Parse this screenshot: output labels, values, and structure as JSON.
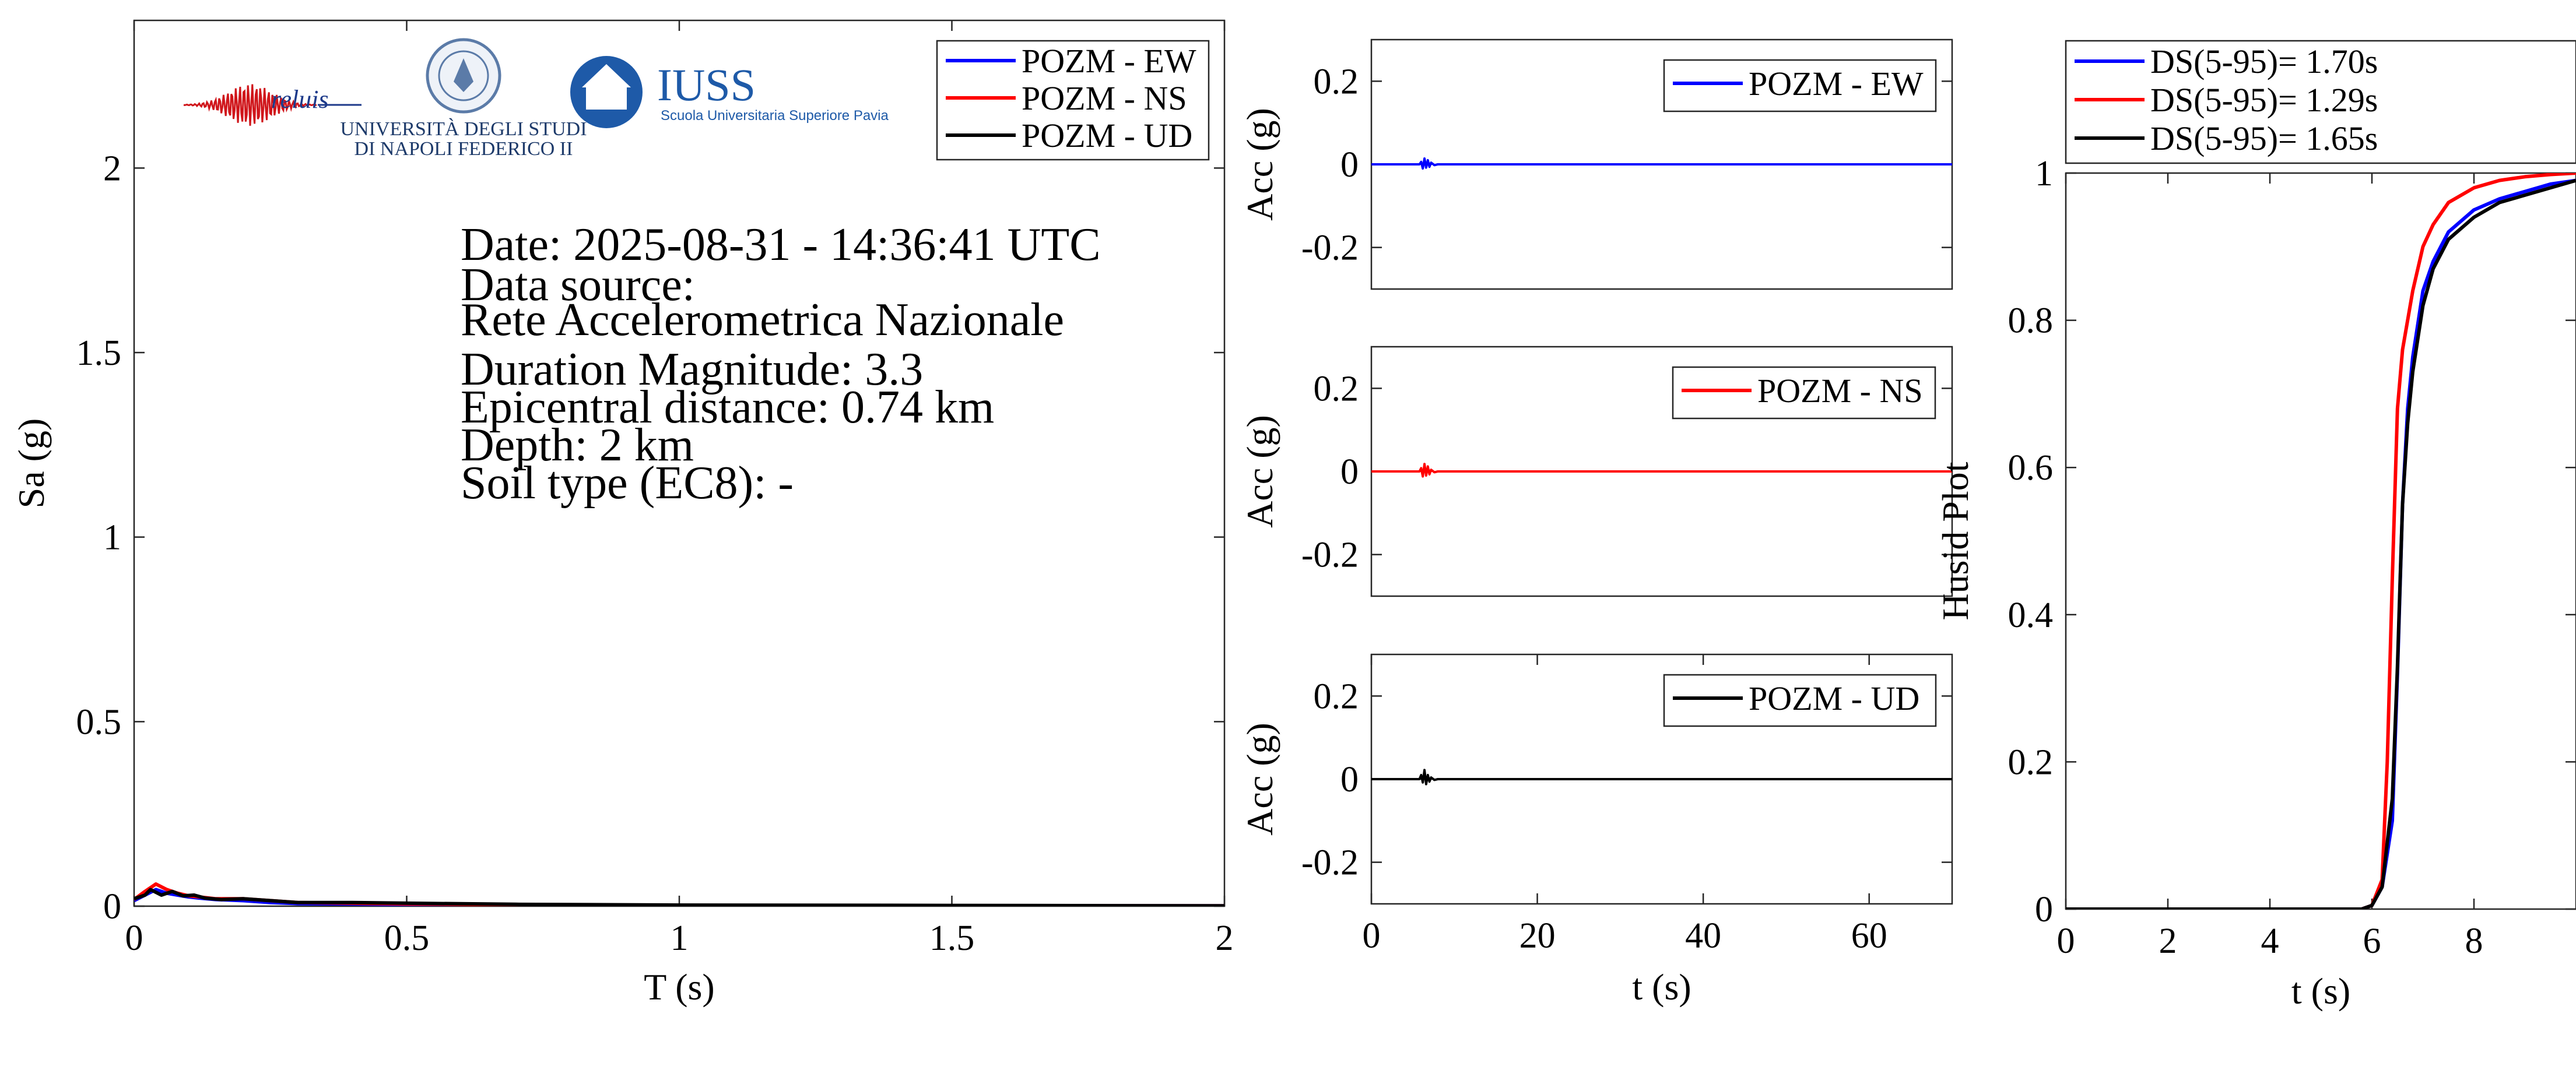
{
  "logos": {
    "reluis": "reluis",
    "unina_line1": "UNIVERSITÀ DEGLI STUDI",
    "unina_line2": "DI NAPOLI FEDERICO II",
    "iuss": "IUSS",
    "iuss_sub": "Scuola Universitaria Superiore Pavia"
  },
  "info": {
    "date": "Date: 2025-08-31 - 14:36:41 UTC",
    "source_label": "Data source:",
    "source": "Rete Accelerometrica Nazionale",
    "magnitude": "Duration Magnitude: 3.3",
    "distance": "Epicentral distance: 0.74 km",
    "depth": "Depth: 2 km",
    "soil": "Soil type (EC8): -"
  },
  "colors": {
    "ew": "#0000ff",
    "ns": "#ff0000",
    "ud": "#000000"
  },
  "chart_data": [
    {
      "type": "line",
      "xlabel": "T (s)",
      "ylabel": "Sa (g)",
      "xlim": [
        0,
        2
      ],
      "ylim": [
        0,
        2.4
      ],
      "xticks": [
        0,
        0.5,
        1,
        1.5,
        2
      ],
      "xtick_labels": [
        "0",
        "0.5",
        "1",
        "1.5",
        "2"
      ],
      "yticks": [
        0,
        0.5,
        1,
        1.5,
        2
      ],
      "ytick_labels": [
        "0",
        "0.5",
        "1",
        "1.5",
        "2"
      ],
      "legend_position": "top-right",
      "series": [
        {
          "name": "POZM - EW",
          "color": "#0000ff",
          "x": [
            0,
            0.02,
            0.04,
            0.06,
            0.08,
            0.1,
            0.12,
            0.15,
            0.2,
            0.25,
            0.3,
            0.4,
            0.5,
            0.7,
            1.0,
            1.5,
            2.0
          ],
          "y": [
            0.015,
            0.03,
            0.045,
            0.035,
            0.03,
            0.025,
            0.022,
            0.018,
            0.015,
            0.01,
            0.007,
            0.006,
            0.004,
            0.003,
            0.002,
            0.001,
            0.001
          ]
        },
        {
          "name": "POZM - NS",
          "color": "#ff0000",
          "x": [
            0,
            0.02,
            0.04,
            0.06,
            0.08,
            0.1,
            0.12,
            0.15,
            0.2,
            0.25,
            0.3,
            0.4,
            0.5,
            0.7,
            1.0,
            1.5,
            2.0
          ],
          "y": [
            0.018,
            0.04,
            0.06,
            0.045,
            0.035,
            0.028,
            0.025,
            0.02,
            0.02,
            0.015,
            0.01,
            0.008,
            0.006,
            0.004,
            0.002,
            0.001,
            0.001
          ]
        },
        {
          "name": "POZM - UD",
          "color": "#000000",
          "x": [
            0,
            0.02,
            0.03,
            0.05,
            0.07,
            0.09,
            0.11,
            0.13,
            0.16,
            0.2,
            0.25,
            0.3,
            0.4,
            0.5,
            0.7,
            1.0,
            1.5,
            2.0
          ],
          "y": [
            0.02,
            0.03,
            0.045,
            0.03,
            0.04,
            0.028,
            0.03,
            0.022,
            0.018,
            0.02,
            0.015,
            0.01,
            0.01,
            0.008,
            0.005,
            0.003,
            0.002,
            0.001
          ]
        }
      ]
    },
    {
      "type": "line",
      "xlabel": "",
      "ylabel": "Acc (g)",
      "xlim": [
        0,
        70
      ],
      "ylim": [
        -0.3,
        0.3
      ],
      "yticks": [
        -0.2,
        0,
        0.2
      ],
      "ytick_labels": [
        "-0.2",
        "0",
        "0.2"
      ],
      "legend_position": "top-right",
      "series": [
        {
          "name": "POZM - EW",
          "color": "#0000ff",
          "x": [
            0,
            5.8,
            6.0,
            6.2,
            6.4,
            6.6,
            6.8,
            7.0,
            7.2,
            7.6,
            8.0,
            70
          ],
          "y": [
            0,
            0,
            0.006,
            -0.01,
            0.014,
            -0.008,
            0.01,
            -0.006,
            0.004,
            -0.002,
            0,
            0
          ]
        }
      ]
    },
    {
      "type": "line",
      "xlabel": "",
      "ylabel": "Acc (g)",
      "xlim": [
        0,
        70
      ],
      "ylim": [
        -0.3,
        0.3
      ],
      "yticks": [
        -0.2,
        0,
        0.2
      ],
      "ytick_labels": [
        "-0.2",
        "0",
        "0.2"
      ],
      "legend_position": "top-right",
      "series": [
        {
          "name": "POZM - NS",
          "color": "#ff0000",
          "x": [
            0,
            5.8,
            6.0,
            6.2,
            6.4,
            6.6,
            6.8,
            7.0,
            7.2,
            7.6,
            8.0,
            70
          ],
          "y": [
            0,
            0,
            0.008,
            -0.012,
            0.018,
            -0.01,
            0.012,
            -0.007,
            0.004,
            -0.002,
            0,
            0
          ]
        }
      ]
    },
    {
      "type": "line",
      "xlabel": "t (s)",
      "ylabel": "Acc (g)",
      "xlim": [
        0,
        70
      ],
      "ylim": [
        -0.3,
        0.3
      ],
      "xticks": [
        0,
        20,
        40,
        60
      ],
      "xtick_labels": [
        "0",
        "20",
        "40",
        "60"
      ],
      "yticks": [
        -0.2,
        0,
        0.2
      ],
      "ytick_labels": [
        "-0.2",
        "0",
        "0.2"
      ],
      "legend_position": "top-right",
      "series": [
        {
          "name": "POZM - UD",
          "color": "#000000",
          "x": [
            0,
            5.8,
            6.0,
            6.2,
            6.4,
            6.6,
            6.8,
            7.0,
            7.2,
            7.6,
            8.0,
            70
          ],
          "y": [
            0,
            0,
            0.01,
            -0.008,
            0.022,
            -0.012,
            0.01,
            -0.006,
            0.004,
            -0.002,
            0,
            0
          ]
        }
      ]
    },
    {
      "type": "line",
      "xlabel": "t (s)",
      "ylabel": "Husid Plot",
      "xlim": [
        0,
        10
      ],
      "ylim": [
        0,
        1
      ],
      "xticks": [
        0,
        2,
        4,
        6,
        8
      ],
      "xtick_labels": [
        "0",
        "2",
        "4",
        "6",
        "8"
      ],
      "yticks": [
        0,
        0.2,
        0.4,
        0.6,
        0.8,
        1
      ],
      "ytick_labels": [
        "0",
        "0.2",
        "0.4",
        "0.6",
        "0.8",
        "1"
      ],
      "legend_position": "above",
      "series": [
        {
          "name": "DS(5-95)= 1.70s",
          "color": "#0000ff",
          "x": [
            0,
            5.8,
            6.0,
            6.2,
            6.4,
            6.5,
            6.6,
            6.7,
            6.8,
            7.0,
            7.2,
            7.5,
            8.0,
            8.5,
            9.0,
            9.5,
            10
          ],
          "y": [
            0,
            0,
            0.005,
            0.03,
            0.12,
            0.32,
            0.55,
            0.68,
            0.75,
            0.84,
            0.88,
            0.92,
            0.95,
            0.965,
            0.975,
            0.985,
            0.99
          ]
        },
        {
          "name": "DS(5-95)= 1.29s",
          "color": "#ff0000",
          "x": [
            0,
            5.8,
            6.0,
            6.2,
            6.3,
            6.4,
            6.5,
            6.6,
            6.8,
            7.0,
            7.2,
            7.5,
            8.0,
            8.5,
            9.0,
            9.5,
            10
          ],
          "y": [
            0,
            0,
            0.005,
            0.04,
            0.2,
            0.45,
            0.68,
            0.76,
            0.84,
            0.9,
            0.93,
            0.96,
            0.98,
            0.99,
            0.995,
            0.998,
            1.0
          ]
        },
        {
          "name": "DS(5-95)= 1.65s",
          "color": "#000000",
          "x": [
            0,
            5.8,
            6.0,
            6.2,
            6.4,
            6.5,
            6.6,
            6.7,
            6.8,
            7.0,
            7.2,
            7.5,
            8.0,
            8.5,
            9.0,
            9.5,
            10
          ],
          "y": [
            0,
            0,
            0.005,
            0.03,
            0.15,
            0.33,
            0.55,
            0.66,
            0.73,
            0.82,
            0.87,
            0.91,
            0.94,
            0.96,
            0.97,
            0.98,
            0.99
          ]
        }
      ]
    }
  ]
}
